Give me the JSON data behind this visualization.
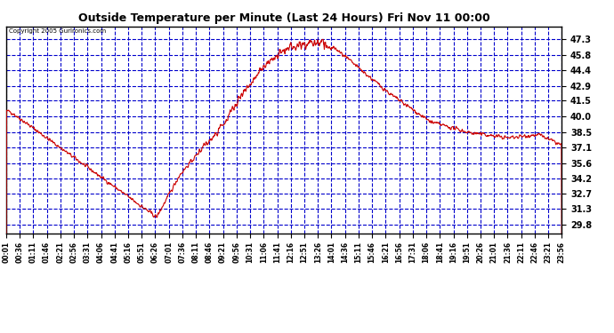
{
  "title": "Outside Temperature per Minute (Last 24 Hours) Fri Nov 11 00:00",
  "copyright": "Copyright 2005 Gurlronics.com",
  "yticks": [
    29.8,
    31.3,
    32.7,
    34.2,
    35.6,
    37.1,
    38.5,
    40.0,
    41.5,
    42.9,
    44.4,
    45.8,
    47.3
  ],
  "ymin": 29.0,
  "ymax": 48.5,
  "plot_bg_color": "#ffffff",
  "line_color": "#cc0000",
  "grid_color": "#0000cc",
  "xtick_labels": [
    "00:01",
    "00:36",
    "01:11",
    "01:46",
    "02:21",
    "02:56",
    "03:31",
    "04:06",
    "04:41",
    "05:16",
    "05:51",
    "06:26",
    "07:01",
    "07:36",
    "08:11",
    "08:46",
    "09:21",
    "09:56",
    "10:31",
    "11:06",
    "11:41",
    "12:16",
    "12:51",
    "13:26",
    "14:01",
    "14:36",
    "15:11",
    "15:46",
    "16:21",
    "16:56",
    "17:31",
    "18:06",
    "18:41",
    "19:16",
    "19:51",
    "20:26",
    "21:01",
    "21:36",
    "22:11",
    "22:46",
    "23:21",
    "23:56"
  ],
  "figsize": [
    6.9,
    3.75
  ],
  "dpi": 100
}
